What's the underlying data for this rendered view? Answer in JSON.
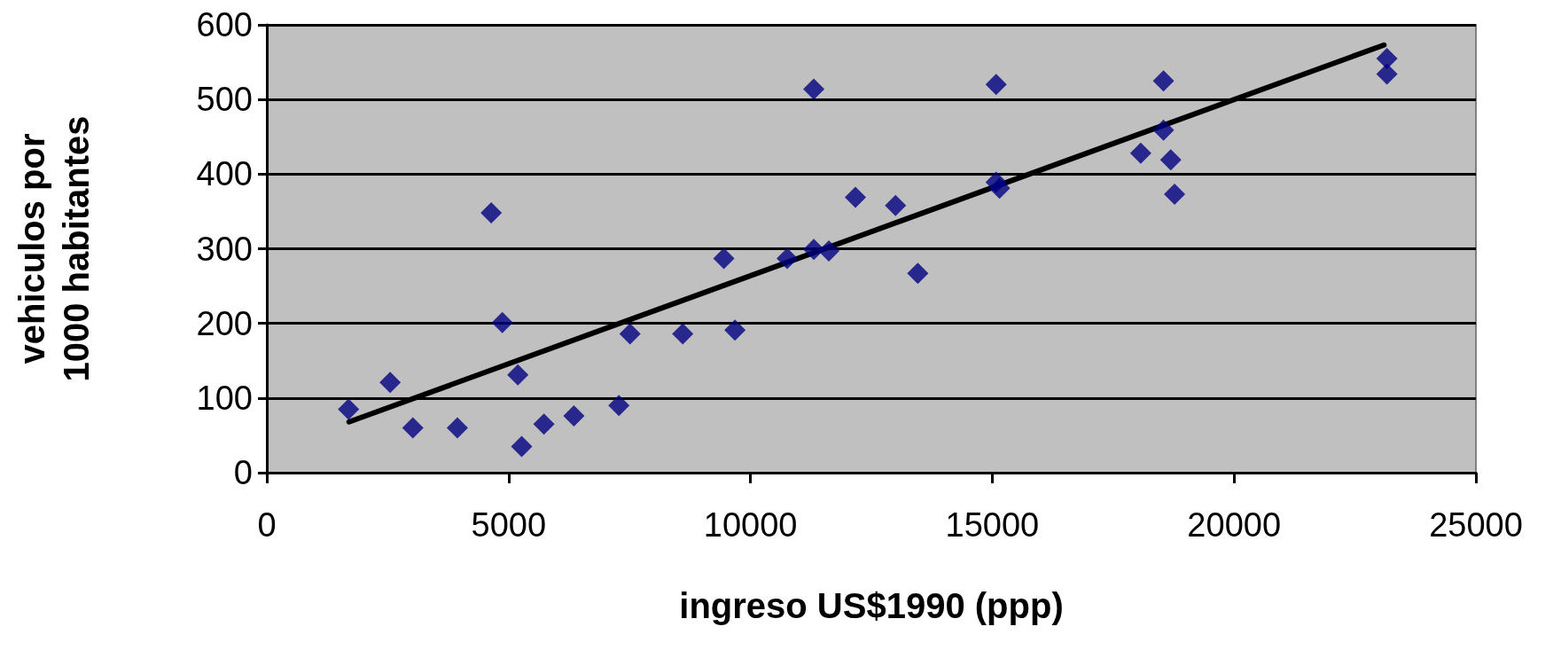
{
  "chart_data": {
    "type": "scatter",
    "xlabel": "ingreso US$1990 (ppp)",
    "ylabel": "vehiculos por 1000 habitantes",
    "xlim": [
      0,
      25000
    ],
    "xticks": [
      0,
      5000,
      10000,
      15000,
      20000,
      25000
    ],
    "ylim": [
      0,
      600
    ],
    "yticks": [
      0,
      100,
      200,
      300,
      400,
      500,
      600
    ],
    "grid": "y",
    "marker": "diamond",
    "series": [
      {
        "color": "#000080",
        "x": [
          1690,
          2550,
          3020,
          3940,
          4640,
          4870,
          5190,
          5270,
          5730,
          6350,
          7280,
          7510,
          8600,
          9450,
          9680,
          10760,
          11310,
          11310,
          11620,
          12170,
          13000,
          13460,
          15080,
          15080,
          15150,
          18070,
          18540,
          18540,
          18690,
          18770,
          23160,
          23160
        ],
        "values": [
          85,
          121,
          60,
          60,
          348,
          201,
          131,
          35,
          65,
          76,
          90,
          186,
          186,
          287,
          191,
          287,
          514,
          299,
          297,
          369,
          358,
          267,
          520,
          389,
          381,
          428,
          525,
          459,
          419,
          373,
          555,
          534
        ]
      },
      {
        "type": "line",
        "color": "#000000",
        "x": [
          1700,
          23100
        ],
        "values": [
          68,
          573
        ],
        "marker": "none",
        "line_style": "solid"
      }
    ]
  }
}
